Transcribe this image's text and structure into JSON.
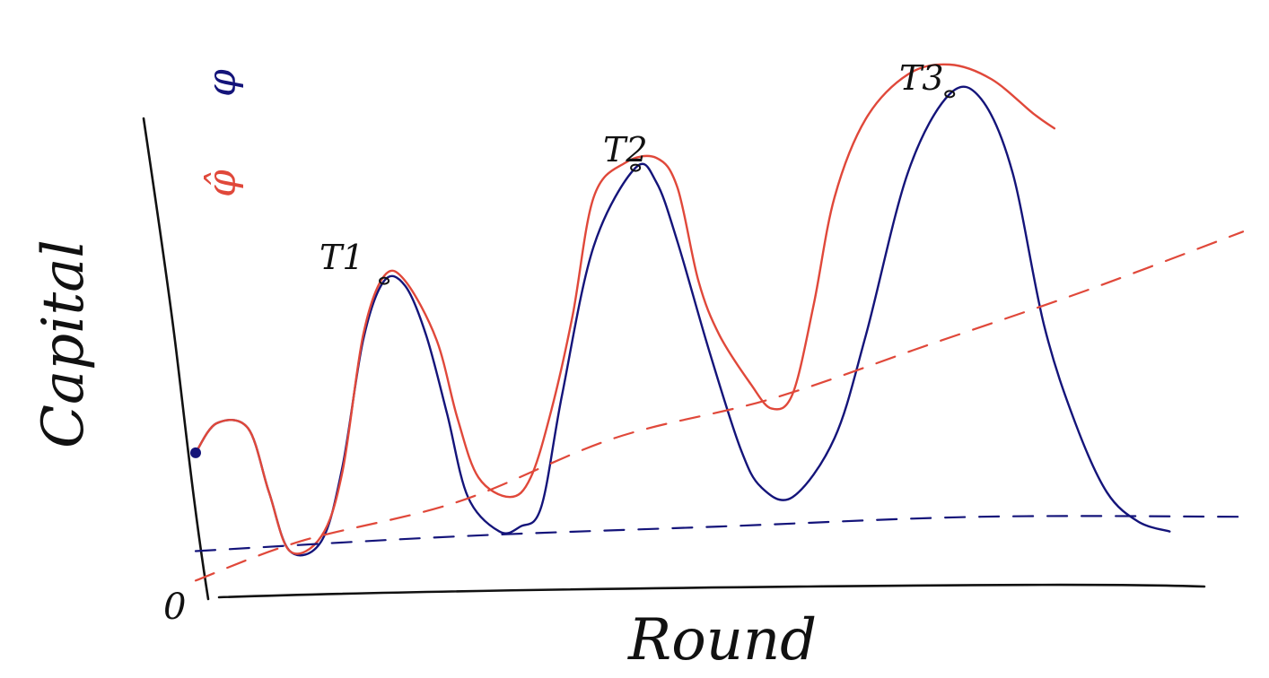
{
  "chart_data": {
    "type": "line",
    "xlabel": "Round",
    "ylabel": "Capital",
    "origin_label": "0",
    "xlim": [
      0,
      1
    ],
    "ylim": [
      0,
      1
    ],
    "grid": false,
    "legend": {
      "placement": "top-left"
    },
    "peak_labels": [
      "T1",
      "T2",
      "T3"
    ],
    "series": [
      {
        "name": "φ",
        "color": "#14147a",
        "style": "solid",
        "points": [
          [
            0.0,
            0.21
          ],
          [
            0.02,
            0.27
          ],
          [
            0.05,
            0.26
          ],
          [
            0.07,
            0.13
          ],
          [
            0.09,
            0.01
          ],
          [
            0.12,
            0.03
          ],
          [
            0.14,
            0.18
          ],
          [
            0.16,
            0.44
          ],
          [
            0.18,
            0.56
          ],
          [
            0.2,
            0.55
          ],
          [
            0.22,
            0.45
          ],
          [
            0.24,
            0.29
          ],
          [
            0.26,
            0.12
          ],
          [
            0.29,
            0.05
          ],
          [
            0.31,
            0.06
          ],
          [
            0.33,
            0.1
          ],
          [
            0.35,
            0.33
          ],
          [
            0.38,
            0.63
          ],
          [
            0.42,
            0.79
          ],
          [
            0.44,
            0.76
          ],
          [
            0.46,
            0.64
          ],
          [
            0.49,
            0.42
          ],
          [
            0.52,
            0.22
          ],
          [
            0.54,
            0.14
          ],
          [
            0.57,
            0.12
          ],
          [
            0.61,
            0.24
          ],
          [
            0.64,
            0.45
          ],
          [
            0.68,
            0.78
          ],
          [
            0.72,
            0.94
          ],
          [
            0.75,
            0.93
          ],
          [
            0.78,
            0.78
          ],
          [
            0.81,
            0.47
          ],
          [
            0.84,
            0.27
          ],
          [
            0.87,
            0.13
          ],
          [
            0.9,
            0.07
          ],
          [
            0.93,
            0.05
          ]
        ]
      },
      {
        "name": "φ̂",
        "color": "#e0483a",
        "style": "solid",
        "points": [
          [
            0.0,
            0.21
          ],
          [
            0.02,
            0.27
          ],
          [
            0.05,
            0.26
          ],
          [
            0.07,
            0.13
          ],
          [
            0.09,
            0.01
          ],
          [
            0.12,
            0.04
          ],
          [
            0.14,
            0.17
          ],
          [
            0.16,
            0.45
          ],
          [
            0.18,
            0.57
          ],
          [
            0.2,
            0.56
          ],
          [
            0.23,
            0.44
          ],
          [
            0.25,
            0.28
          ],
          [
            0.27,
            0.16
          ],
          [
            0.3,
            0.12
          ],
          [
            0.32,
            0.16
          ],
          [
            0.34,
            0.3
          ],
          [
            0.36,
            0.49
          ],
          [
            0.38,
            0.73
          ],
          [
            0.41,
            0.8
          ],
          [
            0.44,
            0.81
          ],
          [
            0.46,
            0.75
          ],
          [
            0.48,
            0.56
          ],
          [
            0.5,
            0.45
          ],
          [
            0.53,
            0.35
          ],
          [
            0.55,
            0.3
          ],
          [
            0.57,
            0.33
          ],
          [
            0.59,
            0.51
          ],
          [
            0.61,
            0.73
          ],
          [
            0.64,
            0.89
          ],
          [
            0.68,
            0.98
          ],
          [
            0.72,
            1.0
          ],
          [
            0.76,
            0.97
          ],
          [
            0.8,
            0.9
          ],
          [
            0.82,
            0.87
          ]
        ]
      },
      {
        "name": "",
        "color": "#14147a",
        "style": "dashed",
        "points": [
          [
            0.0,
            0.01
          ],
          [
            0.25,
            0.04
          ],
          [
            0.5,
            0.06
          ],
          [
            0.75,
            0.08
          ],
          [
            1.0,
            0.08
          ]
        ]
      },
      {
        "name": "",
        "color": "#e0483a",
        "style": "dashed",
        "points": [
          [
            0.0,
            -0.05
          ],
          [
            0.1,
            0.03
          ],
          [
            0.25,
            0.11
          ],
          [
            0.4,
            0.24
          ],
          [
            0.55,
            0.32
          ],
          [
            0.7,
            0.43
          ],
          [
            0.85,
            0.54
          ],
          [
            1.0,
            0.66
          ]
        ]
      }
    ]
  }
}
